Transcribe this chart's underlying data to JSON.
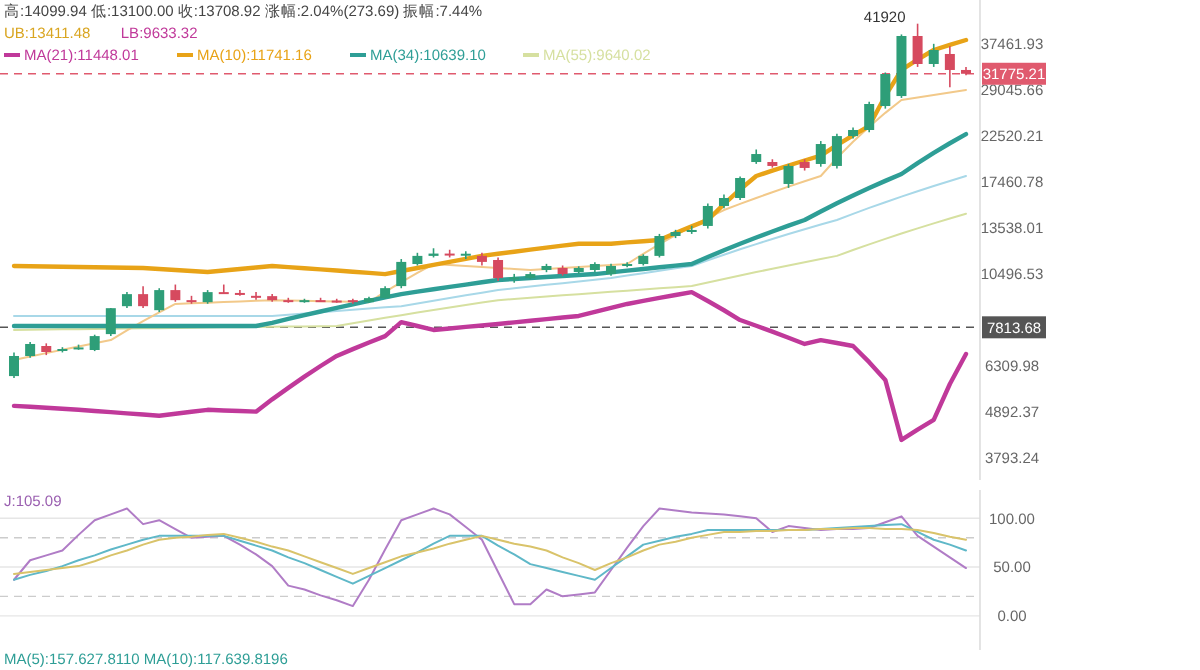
{
  "chart_data": [
    {
      "type": "candlestick",
      "subtitle": "高:14099.94 低:13100.00 收:13708.92 涨幅:2.04%(273.69) 振幅:7.44%",
      "annotations": [
        "UB:13411.48",
        "LB:9633.32",
        "41920"
      ],
      "log": true,
      "tick_labels": "y",
      "legend": "top left",
      "categories": [
        null,
        null,
        null,
        null,
        null,
        null,
        null,
        null,
        null,
        null,
        null,
        null,
        null,
        null,
        null,
        null,
        null,
        null,
        null,
        null,
        null,
        null,
        null,
        null,
        null,
        null,
        null,
        null,
        null,
        null,
        null,
        null,
        null,
        null,
        null,
        null,
        null,
        null,
        null,
        null,
        null,
        null,
        null,
        null,
        null,
        null,
        null,
        null,
        null,
        null,
        null,
        null,
        null,
        null,
        null,
        null,
        null,
        null,
        null,
        null
      ],
      "ylim": [
        3357,
        47790
      ],
      "yticks": [
        37461.93,
        29045.66,
        22520.21,
        17460.78,
        13538.01,
        10496.53,
        6309.98,
        4892.37,
        3793.24
      ],
      "ohlc": [
        [
          5966,
          6800,
          5900,
          6667
        ],
        [
          6667,
          7200,
          6600,
          7125
        ],
        [
          7046,
          7150,
          6700,
          6816
        ],
        [
          6892,
          7000,
          6800,
          6930
        ],
        [
          6968,
          7100,
          6900,
          6990
        ],
        [
          6892,
          7500,
          6850,
          7443
        ],
        [
          7525,
          8700,
          7450,
          8686
        ],
        [
          8783,
          9500,
          8700,
          9388
        ],
        [
          9388,
          9800,
          8700,
          8783
        ],
        [
          8590,
          9700,
          8500,
          9600
        ],
        [
          9600,
          9900,
          9000,
          9081
        ],
        [
          9081,
          9300,
          8900,
          9050
        ],
        [
          8980,
          9600,
          8900,
          9493
        ],
        [
          9493,
          9900,
          9400,
          9450
        ],
        [
          9450,
          9600,
          9300,
          9400
        ],
        [
          9300,
          9500,
          9100,
          9284
        ],
        [
          9284,
          9400,
          9000,
          9081
        ],
        [
          9081,
          9200,
          8950,
          9050
        ],
        [
          9050,
          9150,
          8950,
          9080
        ],
        [
          9080,
          9200,
          9000,
          9060
        ],
        [
          9060,
          9150,
          8950,
          9050
        ],
        [
          9081,
          9150,
          8900,
          8980
        ],
        [
          8980,
          9250,
          8950,
          9182
        ],
        [
          9182,
          9800,
          9150,
          9705
        ],
        [
          9815,
          11400,
          9700,
          11220
        ],
        [
          11090,
          11800,
          11000,
          11600
        ],
        [
          11600,
          12100,
          11500,
          11750
        ],
        [
          11750,
          12000,
          11500,
          11700
        ],
        [
          11700,
          11900,
          11400,
          11740
        ],
        [
          11600,
          11800,
          11000,
          11220
        ],
        [
          11340,
          11500,
          10100,
          10260
        ],
        [
          10260,
          10500,
          10000,
          10300
        ],
        [
          10260,
          10600,
          10200,
          10490
        ],
        [
          10730,
          11100,
          10600,
          10970
        ],
        [
          10850,
          11000,
          10400,
          10490
        ],
        [
          10610,
          10950,
          10500,
          10850
        ],
        [
          10730,
          11200,
          10600,
          11090
        ],
        [
          10490,
          11100,
          10400,
          10970
        ],
        [
          10970,
          11200,
          10900,
          11090
        ],
        [
          11090,
          11700,
          11000,
          11600
        ],
        [
          11600,
          13100,
          11500,
          12950
        ],
        [
          12950,
          13400,
          12800,
          13240
        ],
        [
          13240,
          13700,
          13100,
          13390
        ],
        [
          13690,
          15500,
          13500,
          15290
        ],
        [
          15290,
          16300,
          15100,
          15980
        ],
        [
          15980,
          18000,
          15800,
          17850
        ],
        [
          19500,
          20900,
          19300,
          20380
        ],
        [
          19500,
          19800,
          18900,
          19080
        ],
        [
          17270,
          19300,
          16900,
          19080
        ],
        [
          19500,
          19800,
          18600,
          18870
        ],
        [
          19290,
          21900,
          19000,
          21540
        ],
        [
          19080,
          22800,
          18800,
          22510
        ],
        [
          22510,
          23600,
          22200,
          23280
        ],
        [
          23280,
          27200,
          23000,
          26880
        ],
        [
          26580,
          32000,
          26200,
          31730
        ],
        [
          28090,
          39500,
          27800,
          39160
        ],
        [
          39160,
          41920,
          33000,
          33540
        ],
        [
          33540,
          37500,
          33000,
          36240
        ],
        [
          35450,
          37000,
          29500,
          32450
        ],
        [
          32450,
          33000,
          31500,
          31775.21
        ]
      ],
      "series": [
        {
          "type": "line",
          "color": "#a8d8e8",
          "values": [
            8320,
            8320,
            8320,
            8320,
            8320,
            8320,
            8320,
            8320,
            8320,
            8320,
            8320,
            8320,
            8320,
            8320,
            8320,
            8320,
            8320,
            8378,
            8436,
            8494,
            8552,
            8610,
            8668,
            8726,
            8783,
            8919,
            9055,
            9192,
            9328,
            9464,
            9600,
            9694,
            9788,
            9883,
            9977,
            10071,
            10166,
            10260,
            10402,
            10544,
            10686,
            10828,
            10970,
            11323,
            11677,
            12030,
            12383,
            12737,
            13090,
            13443,
            13797,
            14150,
            14638,
            15125,
            15613,
            16100,
            16588,
            17075,
            17563,
            18050
          ]
        },
        {
          "type": "line",
          "name": "MA(55):9640.02",
          "color": "#d6e0a0",
          "values": [
            7700,
            7709,
            7717,
            7726,
            7734,
            7743,
            7751,
            7760,
            7768,
            7777,
            7785,
            7794,
            7802,
            7811,
            7819,
            7828,
            7836,
            7845,
            7853,
            7862,
            7870,
            7991,
            8112,
            8233,
            8354,
            8476,
            8597,
            8718,
            8839,
            8960,
            9081,
            9142,
            9203,
            9264,
            9326,
            9387,
            9448,
            9509,
            9570,
            9631,
            9693,
            9754,
            9815,
            10013,
            10211,
            10410,
            10608,
            10806,
            11005,
            11203,
            11402,
            11600,
            11981,
            12363,
            12744,
            13125,
            13506,
            13888,
            14269,
            14650
          ]
        },
        {
          "type": "line",
          "color": "#f2c98a",
          "values": [
            6520,
            6647,
            6773,
            6900,
            7027,
            7153,
            7280,
            7683,
            8085,
            8488,
            8890,
            8922,
            8954,
            8986,
            9017,
            9049,
            9081,
            9064,
            9047,
            9030,
            9014,
            8997,
            8980,
            9508,
            10035,
            10563,
            11090,
            11030,
            10970,
            10910,
            10850,
            10790,
            10730,
            10790,
            10850,
            10910,
            10970,
            11030,
            11090,
            11733,
            12377,
            13020,
            13663,
            14307,
            14950,
            15467,
            15983,
            16500,
            17017,
            17533,
            18050,
            19936,
            21822,
            23708,
            25594,
            27480,
            27873,
            28265,
            28658,
            29050
          ]
        },
        {
          "type": "line",
          "name": "MA(34):10639.10",
          "color": "#2e9e96",
          "values": [
            7870,
            7870,
            7870,
            7870,
            7870,
            7870,
            7870,
            7870,
            7870,
            7870,
            7870,
            7870,
            7870,
            7870,
            7870,
            7870,
            8010,
            8183,
            8355,
            8528,
            8700,
            8873,
            9045,
            9218,
            9390,
            9517,
            9643,
            9770,
            9897,
            10023,
            10150,
            10207,
            10263,
            10320,
            10377,
            10433,
            10490,
            10590,
            10690,
            10790,
            10890,
            10990,
            11090,
            11527,
            11964,
            12401,
            12839,
            13276,
            13713,
            14150,
            14833,
            15517,
            16200,
            16883,
            17567,
            18250,
            19378,
            20505,
            21633,
            22760
          ]
        },
        {
          "type": "line",
          "name": "MA(10):11741.16",
          "color": "#e8a317",
          "values": [
            10970,
            10955,
            10940,
            10925,
            10910,
            10895,
            10880,
            10865,
            10850,
            10790,
            10730,
            10670,
            10610,
            10700,
            10790,
            10880,
            10970,
            10901,
            10833,
            10764,
            10696,
            10627,
            10559,
            10490,
            10670,
            10850,
            11038,
            11225,
            11413,
            11600,
            11735,
            11870,
            12005,
            12140,
            12275,
            12410,
            12410,
            12410,
            12497,
            12583,
            12670,
            13163,
            13657,
            14150,
            15450,
            16750,
            18050,
            18588,
            19125,
            19663,
            20200,
            21400,
            22600,
            23800,
            28125,
            32450,
            34345,
            36240,
            37270,
            38300
          ]
        },
        {
          "type": "line",
          "name": "MA(21):11448.01",
          "color": "#c0399a",
          "values": [
            5060,
            5033,
            5005,
            4978,
            4950,
            4918,
            4886,
            4854,
            4822,
            4790,
            4843,
            4897,
            4950,
            4933,
            4917,
            4900,
            5245,
            5590,
            5949,
            6308,
            6667,
            6926,
            7184,
            7443,
            8040,
            7870,
            7700,
            7765,
            7830,
            7895,
            7960,
            8032,
            8104,
            8176,
            8248,
            8320,
            8510,
            8700,
            8890,
            9041,
            9192,
            9342,
            9493,
            9040,
            8587,
            8134,
            7882,
            7630,
            7377,
            7125,
            7280,
            7163,
            7046,
            6443,
            5840,
            4190,
            4435,
            4680,
            5710,
            6740
          ]
        }
      ],
      "ref_lines": [
        {
          "axis": "y",
          "value": 31775.21,
          "label": "31775.21",
          "color": "#e05a6e",
          "line_style": "dashed"
        },
        {
          "axis": "y",
          "value": 7813.68,
          "label": "7813.68",
          "color": "#555555",
          "line_style": "dashed"
        }
      ]
    },
    {
      "type": "line",
      "title": "J:105.09",
      "xlabel": "MA(5):157.627.8110   MA(10):117.639.8196",
      "tick_labels": "y",
      "grid": "y",
      "categories": [
        null,
        null,
        null,
        null,
        null,
        null,
        null,
        null,
        null,
        null,
        null,
        null,
        null,
        null,
        null,
        null,
        null,
        null,
        null,
        null,
        null,
        null,
        null,
        null,
        null,
        null,
        null,
        null,
        null,
        null,
        null,
        null,
        null,
        null,
        null,
        null,
        null,
        null,
        null,
        null,
        null,
        null,
        null,
        null,
        null,
        null,
        null,
        null,
        null,
        null,
        null,
        null,
        null,
        null,
        null,
        null,
        null,
        null,
        null,
        null
      ],
      "ylim": [
        -35,
        129
      ],
      "yticks": [
        {
          "value": 0,
          "label": "0.00"
        },
        {
          "value": 50,
          "label": "50.00"
        },
        {
          "value": 100,
          "label": "100.00"
        }
      ],
      "series": [
        {
          "color": "#b07cc6",
          "values": [
            37,
            57,
            62,
            67,
            83,
            98,
            104,
            110,
            94,
            98,
            89,
            80,
            81,
            82,
            73,
            63,
            51,
            31,
            27,
            21,
            16,
            10,
            37,
            68,
            98,
            104,
            110,
            104,
            91,
            78,
            45,
            12,
            12,
            27,
            20,
            22,
            24,
            47,
            70,
            92,
            110,
            108,
            106,
            105,
            104,
            102,
            100,
            86,
            92,
            90,
            88,
            89,
            89,
            90,
            96,
            102,
            82,
            71,
            60,
            49
          ]
        },
        {
          "color": "#5fb8c8",
          "values": [
            37,
            42,
            46,
            51,
            57,
            62,
            68,
            73,
            78,
            82,
            82,
            82,
            82,
            82,
            77,
            72,
            67,
            60,
            54,
            47,
            40,
            33,
            41,
            49,
            57,
            65,
            74,
            82,
            82,
            82,
            72,
            63,
            53,
            49,
            45,
            41,
            37,
            49,
            61,
            73,
            77,
            81,
            84,
            88,
            88,
            88,
            88,
            88,
            88,
            88,
            89,
            90,
            91,
            92,
            93,
            94,
            86,
            78,
            73,
            67
          ]
        },
        {
          "color": "#d9c36a",
          "values": [
            43,
            45,
            47,
            49,
            51,
            56,
            62,
            67,
            73,
            78,
            80,
            81,
            83,
            84,
            80,
            76,
            71,
            67,
            61,
            55,
            49,
            43,
            49,
            55,
            61,
            65,
            69,
            74,
            78,
            82,
            78,
            74,
            71,
            67,
            60,
            54,
            47,
            54,
            60,
            67,
            73,
            76,
            80,
            83,
            86,
            86,
            87,
            87,
            88,
            88,
            89,
            89,
            90,
            90,
            89,
            89,
            88,
            85,
            81,
            78
          ]
        }
      ],
      "ref_lines": [
        {
          "axis": "y",
          "value": 80,
          "line_style": "dashed",
          "color": "#cccccc"
        },
        {
          "axis": "y",
          "value": 20,
          "line_style": "dashed",
          "color": "#cccccc"
        }
      ]
    }
  ]
}
